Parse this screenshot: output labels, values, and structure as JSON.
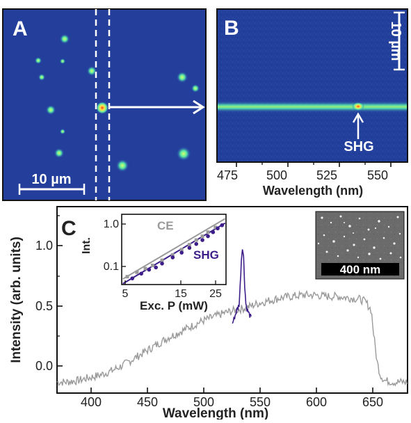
{
  "panels": {
    "a": {
      "letter": "A",
      "scalebar_label": "10 µm"
    },
    "b": {
      "letter": "B",
      "scalebar_label": "10 µm",
      "annotation": "SHG",
      "xlabel": "Wavelength (nm)",
      "x_ticks": [
        "475",
        "500",
        "525",
        "550"
      ]
    },
    "c": {
      "letter": "C",
      "xlabel": "Wavelength (nm)",
      "ylabel": "Intensity (arb. units)",
      "x_ticks": [
        "400",
        "450",
        "500",
        "550",
        "600",
        "650"
      ],
      "y_ticks": [
        "0.0",
        "0.5",
        "1.0"
      ],
      "inset_sem_scalebar": "400 nm",
      "inset_plot": {
        "xlabel": "Exc. P (mW)",
        "ylabel": "Int.",
        "x_ticks": [
          "5",
          "15",
          "25"
        ],
        "y_ticks": [
          "1.0",
          "0.1"
        ],
        "series_labels": {
          "ce": "CE",
          "shg": "SHG"
        }
      }
    }
  },
  "colors": {
    "ce": "#9a9a9a",
    "shg": "#3d1d8a",
    "image_bg": "#233f9c",
    "panel_frame": "#111111"
  },
  "chart_data": [
    {
      "type": "line",
      "title": "",
      "xlabel": "Wavelength (nm)",
      "ylabel": "Intensity (arb. units)",
      "xlim": [
        372,
        682
      ],
      "ylim": [
        -0.08,
        1.27
      ],
      "series": [
        {
          "color": "#9a9a9a",
          "x": [
            372,
            380,
            390,
            400,
            410,
            420,
            430,
            440,
            450,
            460,
            470,
            480,
            490,
            500,
            510,
            520,
            530,
            540,
            550,
            560,
            570,
            580,
            590,
            600,
            610,
            620,
            630,
            640,
            645,
            650,
            652,
            655,
            658,
            662,
            670,
            682
          ],
          "y": [
            0.0,
            0.0,
            0.01,
            0.03,
            0.05,
            0.08,
            0.12,
            0.17,
            0.22,
            0.27,
            0.32,
            0.36,
            0.4,
            0.44,
            0.47,
            0.5,
            0.52,
            0.54,
            0.57,
            0.59,
            0.61,
            0.62,
            0.63,
            0.63,
            0.62,
            0.62,
            0.61,
            0.6,
            0.58,
            0.52,
            0.35,
            0.15,
            0.05,
            0.01,
            0.0,
            0.0
          ]
        },
        {
          "color": "#3d1d8a",
          "x": [
            527,
            529,
            531,
            533,
            534,
            535,
            536,
            537,
            538,
            539,
            540,
            542,
            544
          ],
          "y": [
            0.42,
            0.47,
            0.52,
            0.56,
            0.7,
            0.88,
            0.98,
            0.9,
            0.7,
            0.57,
            0.53,
            0.49,
            0.46
          ]
        }
      ]
    },
    {
      "type": "scatter",
      "title": "",
      "xlabel": "Exc. P (mW)",
      "ylabel": "Int.",
      "xlim": [
        5,
        30
      ],
      "ylim": [
        0.045,
        1.2
      ],
      "yscale": "log",
      "series": [
        {
          "name": "CE",
          "color": "#9a9a9a",
          "x": [
            5.5,
            6.5,
            7.5,
            8.5,
            10,
            12,
            14,
            16,
            18,
            20,
            22,
            25
          ],
          "y": [
            0.065,
            0.08,
            0.095,
            0.11,
            0.14,
            0.18,
            0.23,
            0.29,
            0.36,
            0.43,
            0.52,
            0.65
          ]
        },
        {
          "name": "SHG",
          "color": "#3d1d8a",
          "x": [
            6,
            7,
            8,
            9,
            10,
            12,
            14,
            16,
            18,
            20,
            22,
            24,
            26,
            28
          ],
          "y": [
            0.06,
            0.075,
            0.09,
            0.1,
            0.12,
            0.16,
            0.2,
            0.25,
            0.3,
            0.36,
            0.43,
            0.52,
            0.62,
            0.72
          ]
        }
      ]
    }
  ]
}
